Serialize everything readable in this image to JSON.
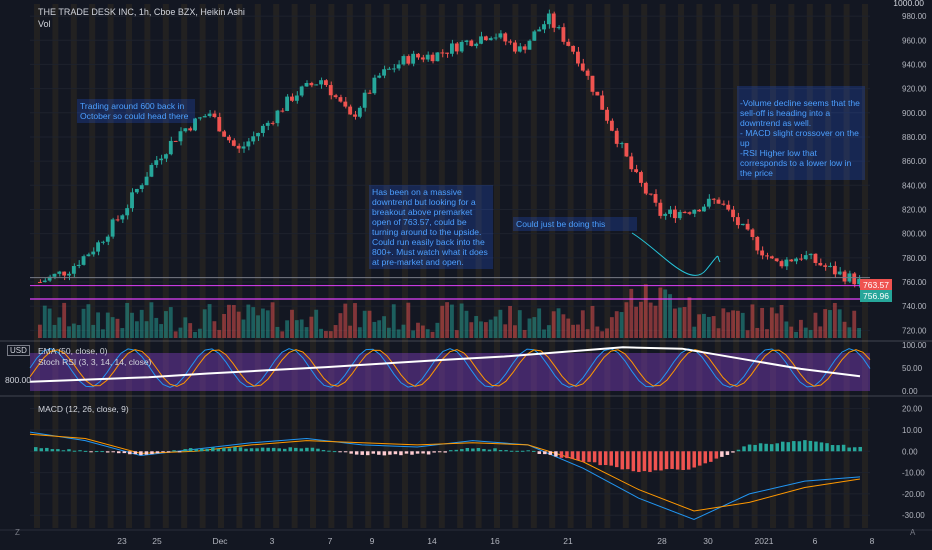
{
  "header": {
    "symbol_line": "THE TRADE DESK INC, 1h, Cboe BZX, Heikin Ashi",
    "vol_label": "Vol",
    "currency": "USD"
  },
  "annotations": {
    "note1": "Trading around 600 back in October so could head there",
    "note2": "Has been on a massive downtrend but looking for a breakout above premarket open of 763.57, could be turning around to the upside. Could run easily back into the 800+. Must watch what it does at pre-market and open.",
    "note3": "Could just be doing this",
    "note4": "-Volume decline  seems that the sell-off is heading into a downtrend as well.\n- MACD slight crossover on the up\n-RSI Higher low that corresponds to a lower low in the price"
  },
  "price_tags": {
    "upper": "763.57",
    "lower": "756.96",
    "usd_box": "USD",
    "rsi_box": "800.00",
    "top_label": "1000.00"
  },
  "indicators": {
    "ema_label": "EMA (50, close, 0)",
    "stoch_label": "Stoch RSI (3, 3, 14, 14, close)",
    "macd_label": "MACD (12, 26, close, 9)"
  },
  "tools": {
    "z_label": "Z",
    "a_label": "A"
  },
  "colors": {
    "background": "#131722",
    "up_candle": "#26a69a",
    "down_candle": "#ef5350",
    "level_line": "#e040fb",
    "vertical_band": "#f5a623",
    "ema_line": "#ffffff",
    "rsi_band": "#7e3fbf",
    "note_text": "#4c9fff"
  },
  "chart_data": [
    {
      "type": "line",
      "title": "THE TRADE DESK INC, 1h, Cboe BZX, Heikin Ashi",
      "ylabel": "USD",
      "yticks": [
        720,
        740,
        760,
        780,
        800,
        820,
        840,
        860,
        880,
        900,
        920,
        940,
        960,
        980
      ],
      "ylim": [
        712,
        990
      ],
      "xticks": [
        "23",
        "25",
        "Dec",
        "3",
        "7",
        "9",
        "14",
        "16",
        "21",
        "28",
        "30",
        "2021",
        "6",
        "8"
      ],
      "x": [
        0,
        10,
        20,
        30,
        40,
        50,
        60,
        70,
        80,
        90,
        100,
        110,
        120,
        130,
        140
      ],
      "series": [
        {
          "values": [
            760,
            770,
            790,
            820,
            858,
            885,
            900,
            868,
            890,
            915,
            928,
            895,
            930,
            945,
            948
          ]
        },
        {
          "values": [
            958,
            966,
            952,
            978,
            948,
            900,
            850,
            815,
            820,
            828,
            800,
            775,
            782,
            770,
            760
          ]
        }
      ],
      "price_lines": [
        763.57,
        756.96
      ]
    },
    {
      "type": "line",
      "title": "Stoch RSI (3, 3, 14, 14, close)",
      "yticks": [
        0,
        50,
        100
      ],
      "ylim": [
        0,
        100
      ],
      "series": [
        {
          "name": "EMA (50, close, 0)",
          "values": [
            20,
            25,
            30,
            38,
            45,
            52,
            60,
            68,
            75,
            85,
            95,
            92,
            70,
            48,
            32
          ]
        }
      ]
    },
    {
      "type": "bar",
      "title": "MACD (12, 26, close, 9)",
      "yticks": [
        20,
        10,
        0,
        -10,
        -20,
        -30
      ],
      "ylim": [
        -36,
        25
      ],
      "series": [
        {
          "name": "macd",
          "values": [
            9,
            5,
            -2,
            1,
            4,
            6,
            3,
            2,
            5,
            3,
            -8,
            -22,
            -32,
            -20,
            -14,
            -12
          ]
        },
        {
          "name": "signal",
          "values": [
            8,
            6,
            -1,
            0,
            3,
            5,
            4,
            3,
            4,
            3,
            -5,
            -18,
            -28,
            -24,
            -17,
            -13
          ]
        },
        {
          "name": "histogram",
          "values": [
            1,
            0,
            -1,
            1,
            1,
            1,
            -1,
            -1,
            1,
            0,
            -3,
            -6,
            -5,
            2,
            3,
            1
          ]
        }
      ]
    }
  ]
}
